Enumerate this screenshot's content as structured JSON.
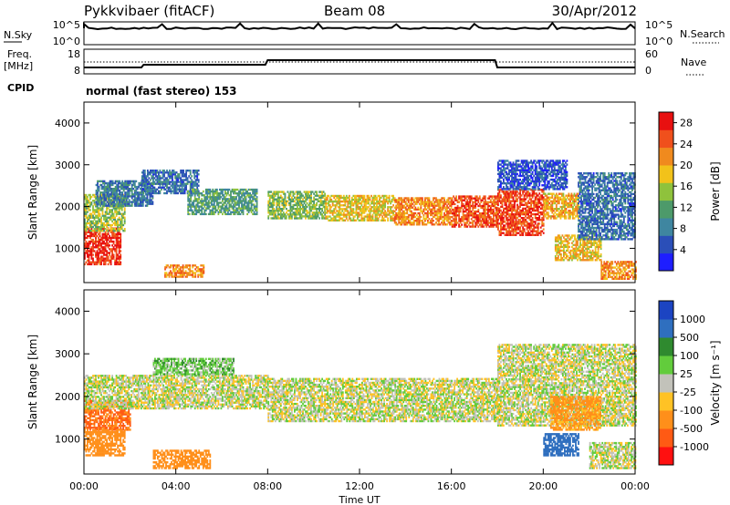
{
  "header": {
    "station": "Pykkvibaer (fitACF)",
    "beam": "Beam 08",
    "date": "30/Apr/2012"
  },
  "status_panels": {
    "nsky_label": "N.Sky",
    "nsky_ticks": [
      "10^5",
      "10^0"
    ],
    "nsearch_label": "N.Search",
    "nsearch_ticks": [
      "10^5",
      "10^0"
    ],
    "freq_label": "Freq.",
    "freq_unit": "[MHz]",
    "freq_ticks": [
      "18",
      "8"
    ],
    "nave_label": "Nave",
    "nave_ticks": [
      "60",
      "0"
    ],
    "cpid_label": "CPID",
    "cpid_value": "normal (fast stereo) 153"
  },
  "x_axis": {
    "label": "Time UT",
    "ticks": [
      "00:00",
      "04:00",
      "08:00",
      "12:00",
      "16:00",
      "20:00",
      "00:00"
    ]
  },
  "colors": {
    "power": [
      "#1e1eff",
      "#2b4fb8",
      "#3f86a0",
      "#4d9a6a",
      "#8fc23c",
      "#f2c21a",
      "#f08a1e",
      "#f0501c",
      "#e81010"
    ],
    "velocity": [
      "#ff1010",
      "#ff5a14",
      "#ff8f1a",
      "#ffc225",
      "#c2c2ba",
      "#62cc3c",
      "#2f8a2f",
      "#2f6fbf",
      "#1c44c2"
    ]
  },
  "chart_data": [
    {
      "type": "heatmap",
      "title": "",
      "xlabel": "",
      "ylabel": "Slant Range [km]",
      "xlim": [
        0,
        24
      ],
      "ylim": [
        180,
        4500
      ],
      "y_ticks": [
        "4000",
        "3000",
        "2000",
        "1000"
      ],
      "colorbar": {
        "label": "Power [dB]",
        "ticks": [
          "28",
          "24",
          "20",
          "16",
          "12",
          "8",
          "4"
        ],
        "range": [
          0,
          30
        ]
      },
      "regions": [
        {
          "t0": 0.0,
          "t1": 1.6,
          "r0": 600,
          "r1": 1500,
          "value": 27
        },
        {
          "t0": 0.0,
          "t1": 1.8,
          "r0": 1400,
          "r1": 2300,
          "value": 15
        },
        {
          "t0": 0.5,
          "t1": 3.0,
          "r0": 2000,
          "r1": 2600,
          "value": 8
        },
        {
          "t0": 2.5,
          "t1": 5.0,
          "r0": 2300,
          "r1": 2850,
          "value": 7
        },
        {
          "t0": 4.5,
          "t1": 7.5,
          "r0": 1800,
          "r1": 2400,
          "value": 11
        },
        {
          "t0": 3.5,
          "t1": 5.2,
          "r0": 300,
          "r1": 600,
          "value": 22
        },
        {
          "t0": 8.0,
          "t1": 10.5,
          "r0": 1700,
          "r1": 2350,
          "value": 14
        },
        {
          "t0": 10.5,
          "t1": 13.5,
          "r0": 1650,
          "r1": 2250,
          "value": 18
        },
        {
          "t0": 13.5,
          "t1": 16.0,
          "r0": 1550,
          "r1": 2200,
          "value": 22
        },
        {
          "t0": 16.0,
          "t1": 18.0,
          "r0": 1500,
          "r1": 2250,
          "value": 25
        },
        {
          "t0": 18.0,
          "t1": 20.0,
          "r0": 1300,
          "r1": 2400,
          "value": 26
        },
        {
          "t0": 18.0,
          "t1": 21.0,
          "r0": 2400,
          "r1": 3100,
          "value": 5
        },
        {
          "t0": 20.0,
          "t1": 21.5,
          "r0": 1700,
          "r1": 2300,
          "value": 20
        },
        {
          "t0": 20.5,
          "t1": 22.5,
          "r0": 700,
          "r1": 1300,
          "value": 19
        },
        {
          "t0": 21.5,
          "t1": 24.0,
          "r0": 1200,
          "r1": 2800,
          "value": 7
        },
        {
          "t0": 22.5,
          "t1": 24.0,
          "r0": 250,
          "r1": 700,
          "value": 22
        }
      ]
    },
    {
      "type": "heatmap",
      "title": "",
      "xlabel": "Time UT",
      "ylabel": "Slant Range [km]",
      "xlim": [
        0,
        24
      ],
      "ylim": [
        180,
        4500
      ],
      "y_ticks": [
        "4000",
        "3000",
        "2000",
        "1000"
      ],
      "colorbar": {
        "label": "Velocity [m s⁻¹]",
        "ticks": [
          "1000",
          "500",
          "100",
          "25",
          "-25",
          "-100",
          "-500",
          "-1000"
        ],
        "range": [
          -1200,
          1200
        ]
      },
      "regions": [
        {
          "t0": 0.0,
          "t1": 2.0,
          "r0": 1200,
          "r1": 1900,
          "value": -520
        },
        {
          "t0": 0.0,
          "t1": 1.8,
          "r0": 600,
          "r1": 1200,
          "value": -180
        },
        {
          "t0": 0.0,
          "t1": 8.0,
          "r0": 1700,
          "r1": 2500,
          "value": 0
        },
        {
          "t0": 3.0,
          "t1": 6.5,
          "r0": 2500,
          "r1": 2900,
          "value": 60
        },
        {
          "t0": 3.0,
          "t1": 5.5,
          "r0": 300,
          "r1": 750,
          "value": -210
        },
        {
          "t0": 8.0,
          "t1": 18.0,
          "r0": 1400,
          "r1": 2400,
          "value": 0
        },
        {
          "t0": 18.0,
          "t1": 24.0,
          "r0": 1300,
          "r1": 3200,
          "value": 0
        },
        {
          "t0": 20.0,
          "t1": 21.5,
          "r0": 600,
          "r1": 1100,
          "value": 900
        },
        {
          "t0": 20.3,
          "t1": 22.5,
          "r0": 1200,
          "r1": 2000,
          "value": -140
        },
        {
          "t0": 22.0,
          "t1": 24.0,
          "r0": 300,
          "r1": 900,
          "value": 0
        }
      ]
    }
  ]
}
